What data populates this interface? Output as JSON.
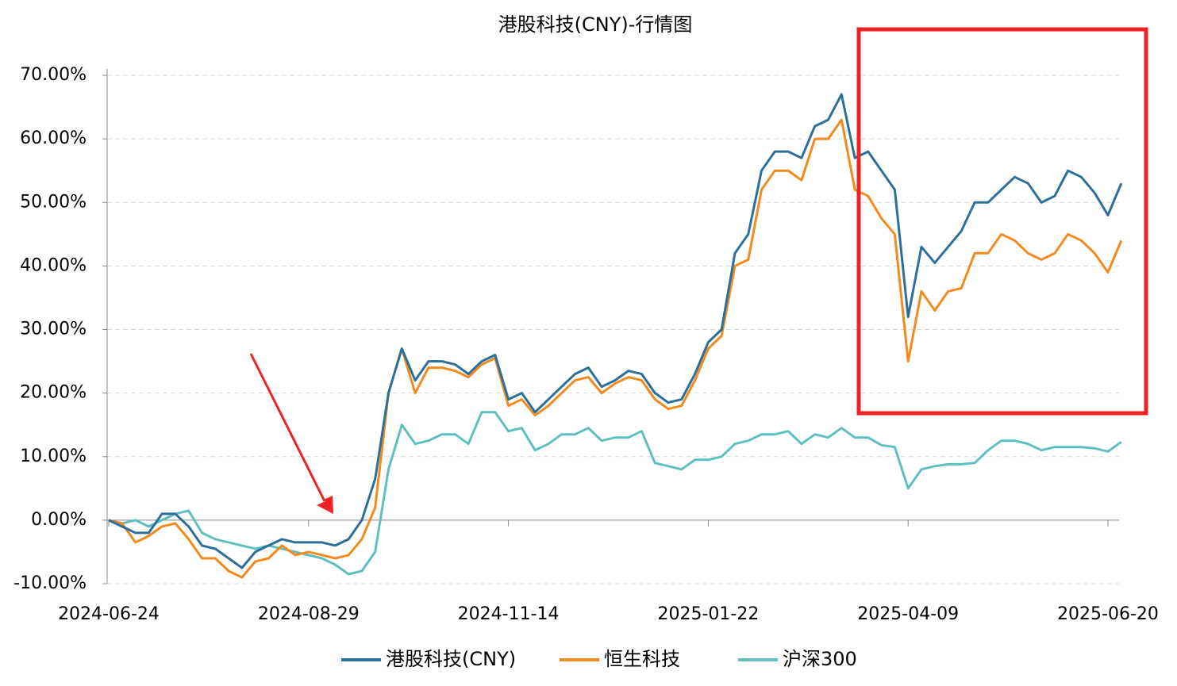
{
  "chart_data": {
    "type": "line",
    "title": "港股科技(CNY)-行情图",
    "categories": [
      "2024-06-24",
      null,
      null,
      null,
      null,
      null,
      null,
      null,
      null,
      null,
      null,
      null,
      null,
      null,
      null,
      "2024-08-29",
      null,
      null,
      null,
      null,
      null,
      null,
      null,
      null,
      null,
      null,
      null,
      null,
      null,
      null,
      "2024-11-14",
      null,
      null,
      null,
      null,
      null,
      null,
      null,
      null,
      null,
      null,
      null,
      null,
      null,
      null,
      "2025-01-22",
      null,
      null,
      null,
      null,
      null,
      null,
      null,
      null,
      null,
      null,
      null,
      null,
      null,
      null,
      "2025-04-09",
      null,
      null,
      null,
      null,
      null,
      null,
      null,
      null,
      null,
      null,
      null,
      null,
      null,
      null,
      "2025-06-20",
      null
    ],
    "series": [
      {
        "name": "港股科技(CNY)",
        "color": "#2b6f9a",
        "values": [
          0,
          -1,
          -2,
          -2,
          1,
          1,
          -1,
          -4,
          -4.5,
          -6,
          -7.5,
          -5,
          -4,
          -3,
          -3.5,
          -3.5,
          -3.5,
          -4,
          -3,
          0,
          6.5,
          20,
          27,
          22,
          25,
          25,
          24.5,
          23,
          25,
          26,
          19,
          20,
          17,
          19,
          21,
          23,
          24,
          21,
          22,
          23.5,
          23,
          20,
          18.5,
          19,
          23,
          28,
          30,
          42,
          45,
          55,
          58,
          58,
          57,
          62,
          63,
          67,
          57,
          58,
          55,
          52,
          32,
          43,
          40.5,
          43,
          45.5,
          50,
          50,
          52,
          54,
          53,
          50,
          51,
          55,
          54,
          51.5,
          48,
          53
        ]
      },
      {
        "name": "恒生科技",
        "color": "#f28a1e",
        "values": [
          0,
          -0.5,
          -3.5,
          -2.5,
          -1,
          -0.5,
          -3,
          -6,
          -6,
          -8,
          -9,
          -6.5,
          -6,
          -4,
          -5.5,
          -5,
          -5.5,
          -6,
          -5.5,
          -3,
          2,
          20,
          27,
          20,
          24,
          24,
          23.5,
          22.5,
          24.5,
          25.5,
          18,
          19,
          16.5,
          18,
          20,
          22,
          22.5,
          20,
          21.5,
          22.5,
          22,
          19,
          17.5,
          18,
          22,
          27,
          29,
          40,
          41,
          52,
          55,
          55,
          53.5,
          60,
          60,
          63,
          52,
          51,
          47.5,
          45,
          25,
          36,
          33,
          36,
          36.5,
          42,
          42,
          45,
          44,
          42,
          41,
          42,
          45,
          44,
          42,
          39,
          44
        ]
      },
      {
        "name": "沪深300",
        "color": "#5fbfbf",
        "values": [
          0,
          -0.5,
          0,
          -1,
          0,
          1,
          1.5,
          -2,
          -3,
          -3.5,
          -4,
          -4.5,
          -4,
          -4.5,
          -5,
          -5.5,
          -6,
          -7,
          -8.5,
          -8,
          -5,
          8,
          15,
          12,
          12.5,
          13.5,
          13.5,
          12,
          17,
          17,
          14,
          14.5,
          11,
          12,
          13.5,
          13.5,
          14.5,
          12.5,
          13,
          13,
          14,
          9,
          8.5,
          8,
          9.5,
          9.5,
          10,
          12,
          12.5,
          13.5,
          13.5,
          14,
          12,
          13.5,
          13,
          14.5,
          13,
          13,
          11.8,
          11.5,
          5,
          8,
          8.5,
          8.8,
          8.8,
          9,
          11,
          12.5,
          12.5,
          12,
          11,
          11.5,
          11.5,
          11.5,
          11.3,
          10.8,
          12.3
        ]
      }
    ],
    "ylim": [
      -10,
      70
    ],
    "yticks": [
      {
        "value": -10,
        "label": "-10.00%"
      },
      {
        "value": 0,
        "label": "0.00%"
      },
      {
        "value": 10,
        "label": "10.00%"
      },
      {
        "value": 20,
        "label": "20.00%"
      },
      {
        "value": 30,
        "label": "30.00%"
      },
      {
        "value": 40,
        "label": "40.00%"
      },
      {
        "value": 50,
        "label": "50.00%"
      },
      {
        "value": 60,
        "label": "60.00%"
      },
      {
        "value": 70,
        "label": "70.00%"
      }
    ],
    "grid": true,
    "legend": "bottom"
  }
}
